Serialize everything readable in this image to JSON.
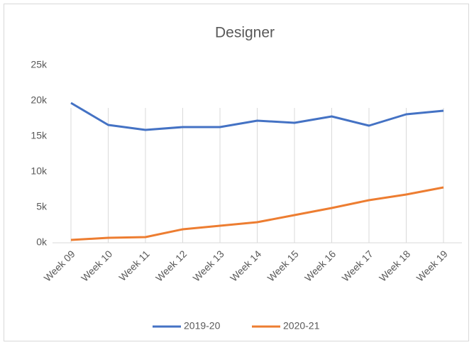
{
  "chart_data": {
    "type": "line",
    "title": "Designer",
    "categories": [
      "Week 09",
      "Week 10",
      "Week 11",
      "Week 12",
      "Week 13",
      "Week 14",
      "Week 15",
      "Week 16",
      "Week 17",
      "Week 18",
      "Week 19"
    ],
    "series": [
      {
        "name": "2019-20",
        "color": "#4472c4",
        "values": [
          19700,
          16600,
          15900,
          16300,
          16300,
          17200,
          16900,
          17800,
          16500,
          18100,
          18600
        ]
      },
      {
        "name": "2020-21",
        "color": "#ed7d31",
        "values": [
          400,
          700,
          800,
          1900,
          2400,
          2900,
          3900,
          4900,
          6000,
          6800,
          7800
        ]
      }
    ],
    "ylim": [
      0,
      25000
    ],
    "yticks": [
      {
        "value": 0,
        "label": "0k"
      },
      {
        "value": 5000,
        "label": "5k"
      },
      {
        "value": 10000,
        "label": "10k"
      },
      {
        "value": 15000,
        "label": "15k"
      },
      {
        "value": 20000,
        "label": "20k"
      },
      {
        "value": 25000,
        "label": "25k"
      }
    ],
    "grid": "x",
    "legend": "bottom"
  }
}
